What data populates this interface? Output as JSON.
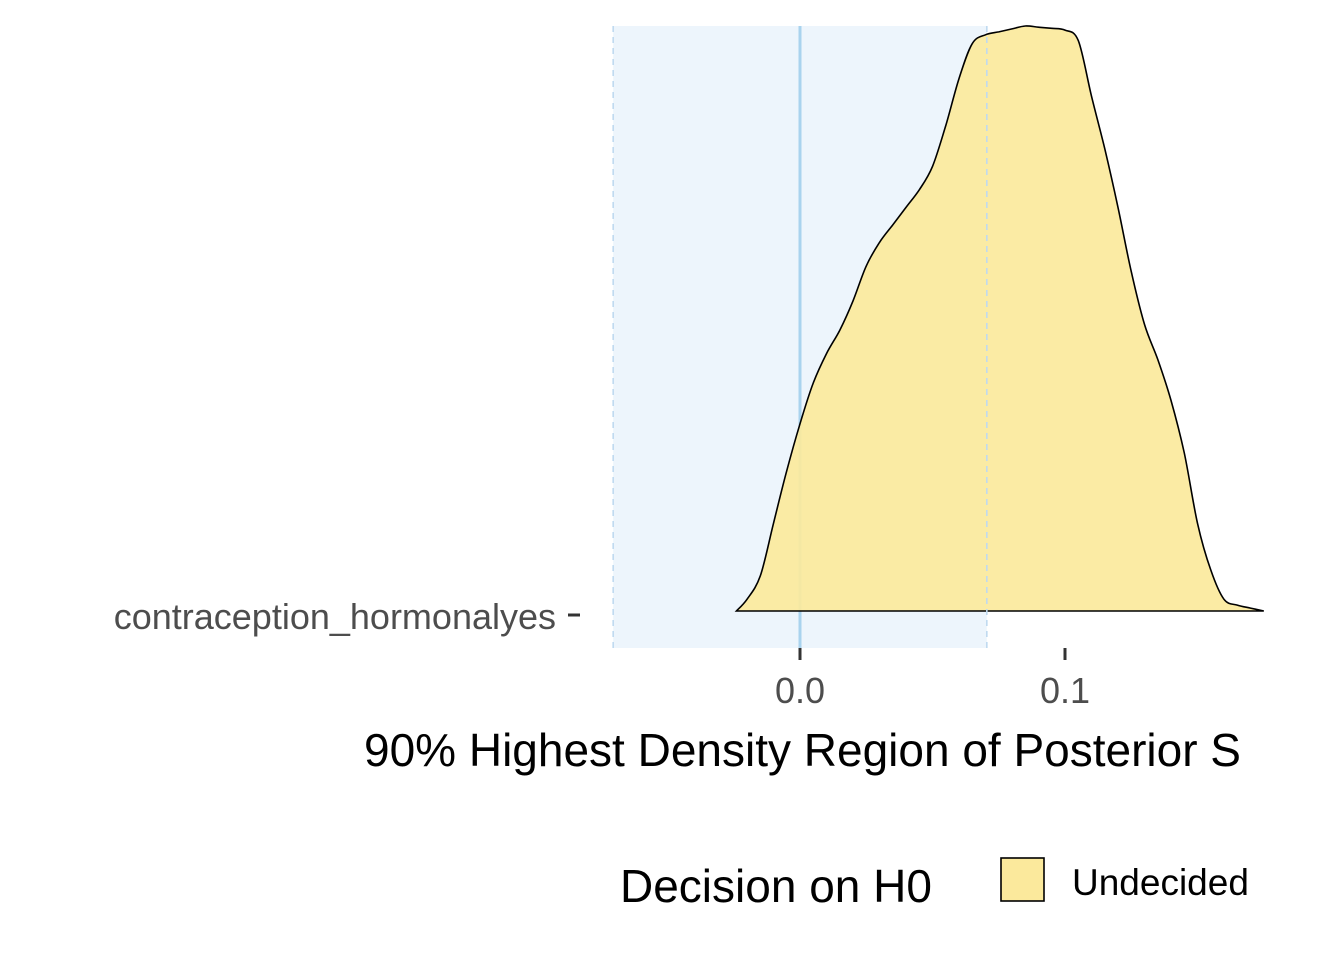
{
  "chart_data": {
    "type": "area",
    "subtype": "density-ridge",
    "category": "contraception_hormonalyes",
    "xlabel": "90% Highest Density Region of Posterior S",
    "x_ticks": [
      0.0,
      0.1
    ],
    "x_tick_labels": [
      "0.0",
      "0.1"
    ],
    "xlim": [
      -0.07,
      0.205
    ],
    "rope": [
      -0.0705,
      0.0705
    ],
    "zero_line": 0.0,
    "density": {
      "x": [
        -0.024,
        -0.02,
        -0.015,
        -0.01,
        -0.005,
        0.0,
        0.005,
        0.01,
        0.015,
        0.02,
        0.025,
        0.03,
        0.035,
        0.04,
        0.045,
        0.05,
        0.055,
        0.06,
        0.065,
        0.07,
        0.075,
        0.08,
        0.085,
        0.09,
        0.095,
        0.1,
        0.105,
        0.11,
        0.115,
        0.12,
        0.125,
        0.13,
        0.135,
        0.14,
        0.145,
        0.15,
        0.155,
        0.16,
        0.165,
        0.17,
        0.175
      ],
      "y": [
        0.0,
        0.02,
        0.06,
        0.15,
        0.24,
        0.32,
        0.39,
        0.44,
        0.48,
        0.53,
        0.59,
        0.63,
        0.66,
        0.69,
        0.72,
        0.76,
        0.83,
        0.91,
        0.97,
        0.985,
        0.99,
        0.995,
        1.0,
        0.998,
        0.996,
        0.993,
        0.975,
        0.88,
        0.79,
        0.69,
        0.58,
        0.49,
        0.43,
        0.36,
        0.27,
        0.15,
        0.07,
        0.02,
        0.01,
        0.005,
        0.0
      ]
    },
    "fill_color": "#FBE99C",
    "rope_color": "#EAF3FB",
    "zero_line_color": "#A9D3EE",
    "grid": false,
    "legend": {
      "title": "Decision on H0",
      "placement": "bottom",
      "entries": [
        {
          "name": "Undecided",
          "color": "#FBE99C"
        }
      ]
    }
  }
}
